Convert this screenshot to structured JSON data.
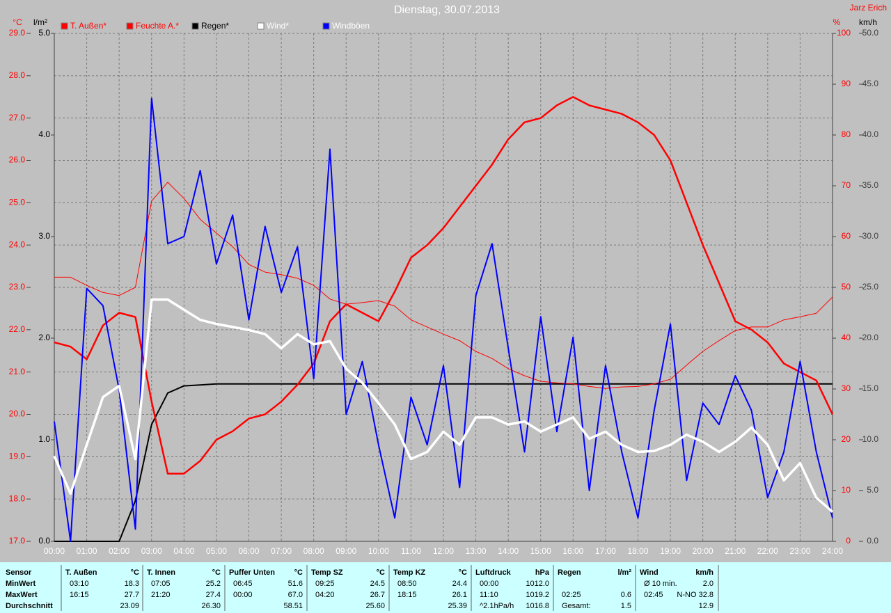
{
  "chart_data": {
    "type": "line",
    "title": "Dienstag, 30.07.2013",
    "author": "Jarz Erich",
    "ylabel": "°C",
    "y2label": "%",
    "y3label": "l/m²",
    "y4label": "km/h",
    "xlim": [
      0,
      24
    ],
    "xticks": [
      {
        "value": 0,
        "label": "00:00"
      },
      {
        "value": 1,
        "label": "01:00"
      },
      {
        "value": 2,
        "label": "02:00"
      },
      {
        "value": 3,
        "label": "03:00"
      },
      {
        "value": 4,
        "label": "04:00"
      },
      {
        "value": 5,
        "label": "05:00"
      },
      {
        "value": 6,
        "label": "06:00"
      },
      {
        "value": 7,
        "label": "07:00"
      },
      {
        "value": 8,
        "label": "08:00"
      },
      {
        "value": 9,
        "label": "09:00"
      },
      {
        "value": 10,
        "label": "10:00"
      },
      {
        "value": 11,
        "label": "11:00"
      },
      {
        "value": 12,
        "label": "12:00"
      },
      {
        "value": 13,
        "label": "13:00"
      },
      {
        "value": 14,
        "label": "14:00"
      },
      {
        "value": 15,
        "label": "15:00"
      },
      {
        "value": 16,
        "label": "16:00"
      },
      {
        "value": 17,
        "label": "17:00"
      },
      {
        "value": 18,
        "label": "18:00"
      },
      {
        "value": 19,
        "label": "19:00"
      },
      {
        "value": 20,
        "label": "20:00"
      },
      {
        "value": 21,
        "label": "21:00"
      },
      {
        "value": 22,
        "label": "22:00"
      },
      {
        "value": 23,
        "label": "23:00"
      },
      {
        "value": 24,
        "label": "24:00"
      }
    ],
    "ylim": [
      17,
      29
    ],
    "yticks": [
      {
        "value": 17,
        "label": "17.0"
      },
      {
        "value": 18,
        "label": "18.0"
      },
      {
        "value": 19,
        "label": "19.0"
      },
      {
        "value": 20,
        "label": "20.0"
      },
      {
        "value": 21,
        "label": "21.0"
      },
      {
        "value": 22,
        "label": "22.0"
      },
      {
        "value": 23,
        "label": "23.0"
      },
      {
        "value": 24,
        "label": "24.0"
      },
      {
        "value": 25,
        "label": "25.0"
      },
      {
        "value": 26,
        "label": "26.0"
      },
      {
        "value": 27,
        "label": "27.0"
      },
      {
        "value": 28,
        "label": "28.0"
      },
      {
        "value": 29,
        "label": "29.0"
      }
    ],
    "y2lim": [
      0,
      100
    ],
    "y2ticks": [
      0,
      10,
      20,
      30,
      40,
      50,
      60,
      70,
      80,
      90,
      100
    ],
    "y3lim": [
      0,
      5
    ],
    "y3ticks": [
      {
        "value": 0,
        "label": "0.0"
      },
      {
        "value": 1,
        "label": "1.0"
      },
      {
        "value": 2,
        "label": "2.0"
      },
      {
        "value": 3,
        "label": "3.0"
      },
      {
        "value": 4,
        "label": "4.0"
      },
      {
        "value": 5,
        "label": "5.0"
      }
    ],
    "y4lim": [
      0,
      50
    ],
    "y4ticks": [
      {
        "value": 0,
        "label": "0.0"
      },
      {
        "value": 5,
        "label": "5.0"
      },
      {
        "value": 10,
        "label": "10.0"
      },
      {
        "value": 15,
        "label": "15.0"
      },
      {
        "value": 20,
        "label": "20.0"
      },
      {
        "value": 25,
        "label": "25.0"
      },
      {
        "value": 30,
        "label": "30.0"
      },
      {
        "value": 35,
        "label": "35.0"
      },
      {
        "value": 40,
        "label": "40.0"
      },
      {
        "value": 45,
        "label": "45.0"
      },
      {
        "value": 50,
        "label": "50.0"
      }
    ],
    "grid": true,
    "x": [
      0,
      0.5,
      1,
      1.5,
      2,
      2.5,
      3,
      3.5,
      4,
      4.5,
      5,
      5.5,
      6,
      6.5,
      7,
      7.5,
      8,
      8.5,
      9,
      9.5,
      10,
      10.5,
      11,
      11.5,
      12,
      12.5,
      13,
      13.5,
      14,
      14.5,
      15,
      15.5,
      16,
      16.5,
      17,
      17.5,
      18,
      18.5,
      19,
      19.5,
      20,
      20.5,
      21,
      21.5,
      22,
      22.5,
      23,
      23.5,
      24
    ],
    "series": [
      {
        "name": "T. Außen*",
        "color": "#ff0000",
        "axis": "y",
        "values": [
          21.7,
          21.6,
          21.3,
          22.1,
          22.4,
          22.3,
          20.3,
          18.6,
          18.6,
          18.9,
          19.4,
          19.6,
          19.9,
          20.0,
          20.3,
          20.7,
          21.2,
          22.2,
          22.6,
          22.4,
          22.2,
          22.9,
          23.7,
          24.0,
          24.4,
          24.9,
          25.4,
          25.9,
          26.5,
          26.9,
          27.0,
          27.3,
          27.5,
          27.3,
          27.2,
          27.1,
          26.9,
          26.6,
          26.0,
          25.0,
          24.0,
          23.1,
          22.2,
          22.0,
          21.7,
          21.2,
          21.0,
          20.8,
          20.0
        ]
      },
      {
        "name": "Feuchte A.*",
        "color": "#ff0000",
        "axis": "y2",
        "values": [
          52,
          52,
          50.4,
          49,
          48.4,
          50,
          67,
          70.7,
          67.5,
          63.4,
          60.7,
          58,
          54.5,
          53,
          52.5,
          51.8,
          50.4,
          47.7,
          46.7,
          47,
          47.4,
          46.3,
          43.6,
          42.2,
          40.8,
          39.5,
          37.4,
          36,
          34,
          32.6,
          31.5,
          31.2,
          31,
          30.5,
          30.1,
          30.4,
          30.5,
          31,
          31.9,
          34.7,
          37.4,
          39.5,
          41.5,
          42.2,
          42.2,
          43.6,
          44.2,
          44.9,
          48.1
        ]
      },
      {
        "name": "Regen*",
        "color": "#000000",
        "axis": "y3",
        "values": [
          0,
          0,
          0,
          0,
          0,
          0.4,
          1.15,
          1.46,
          1.53,
          1.54,
          1.55,
          1.55,
          1.55,
          1.55,
          1.55,
          1.55,
          1.55,
          1.55,
          1.55,
          1.55,
          1.55,
          1.55,
          1.55,
          1.55,
          1.55,
          1.55,
          1.55,
          1.55,
          1.55,
          1.55,
          1.55,
          1.55,
          1.55,
          1.55,
          1.55,
          1.55,
          1.55,
          1.55,
          1.55,
          1.55,
          1.55,
          1.55,
          1.55,
          1.55,
          1.55,
          1.55,
          1.55,
          1.55,
          1.55
        ]
      },
      {
        "name": "Wind*",
        "color": "#ffffff",
        "axis": "y4",
        "values": [
          8.4,
          4.7,
          9.5,
          14.2,
          15.3,
          8.1,
          23.8,
          23.8,
          22.8,
          21.8,
          21.4,
          21.1,
          20.8,
          20.4,
          19,
          20.4,
          19.4,
          19.7,
          17,
          15.6,
          13.6,
          11.5,
          8.1,
          8.8,
          10.8,
          9.5,
          12.2,
          12.2,
          11.5,
          11.8,
          10.8,
          11.5,
          12.2,
          10.1,
          10.8,
          9.5,
          8.8,
          8.9,
          9.5,
          10.5,
          9.8,
          8.8,
          9.8,
          11.2,
          9.5,
          6,
          7.7,
          4.3,
          2.9
        ]
      },
      {
        "name": "Windböen",
        "color": "#0000ff",
        "axis": "y4",
        "values": [
          11.8,
          0,
          24.9,
          23.2,
          14.9,
          1.2,
          43.6,
          29.3,
          30,
          36.5,
          27.3,
          32.1,
          21.8,
          31,
          24.5,
          29,
          16,
          38.6,
          12.5,
          17.7,
          9.5,
          2.3,
          14.2,
          9.5,
          17.3,
          5.3,
          24.2,
          29.3,
          19,
          8.8,
          22.1,
          10.8,
          20.1,
          5,
          17.3,
          8.8,
          2.3,
          12.9,
          21.4,
          6,
          13.6,
          11.5,
          16.3,
          12.9,
          4.3,
          8.8,
          17.7,
          8.8,
          2.3
        ]
      }
    ]
  },
  "stats": {
    "row_labels": [
      "Sensor",
      "MinWert",
      "MaxWert",
      "Durchschnitt"
    ],
    "columns": [
      {
        "name": "T. Außen",
        "unit": "°C",
        "rows": [
          [
            "03:10",
            "18.3"
          ],
          [
            "16:15",
            "27.7"
          ],
          [
            "23.09"
          ]
        ]
      },
      {
        "name": "T. Innen",
        "unit": "°C",
        "rows": [
          [
            "07:05",
            "25.2"
          ],
          [
            "21:20",
            "27.4"
          ],
          [
            "26.30"
          ]
        ]
      },
      {
        "name": "Puffer Unten",
        "unit": "°C",
        "rows": [
          [
            "06:45",
            "51.6"
          ],
          [
            "00:00",
            "67.0"
          ],
          [
            "58.51"
          ]
        ]
      },
      {
        "name": "Temp SZ",
        "unit": "°C",
        "rows": [
          [
            "09:25",
            "24.5"
          ],
          [
            "04:20",
            "26.7"
          ],
          [
            "25.60"
          ]
        ]
      },
      {
        "name": "Temp KZ",
        "unit": "°C",
        "rows": [
          [
            "08:50",
            "24.4"
          ],
          [
            "18:15",
            "26.1"
          ],
          [
            "25.39"
          ]
        ]
      },
      {
        "name": "Luftdruck",
        "unit": "hPa",
        "rows": [
          [
            "00:00",
            "1012.0"
          ],
          [
            "11:10",
            "1019.2"
          ],
          [
            "^2.1hPa/h",
            "1016.8"
          ]
        ]
      },
      {
        "name": "Regen",
        "unit": "l/m²",
        "rows": [
          null,
          [
            "02:25",
            "0.6"
          ],
          [
            "Gesamt:",
            "1.5"
          ]
        ]
      },
      {
        "name": "Wind",
        "unit": "km/h",
        "rows": [
          [
            "Ø 10 min.",
            "2.0"
          ],
          [
            "02:45",
            "N-NO 32.8"
          ],
          [
            "12.9"
          ]
        ]
      }
    ]
  }
}
